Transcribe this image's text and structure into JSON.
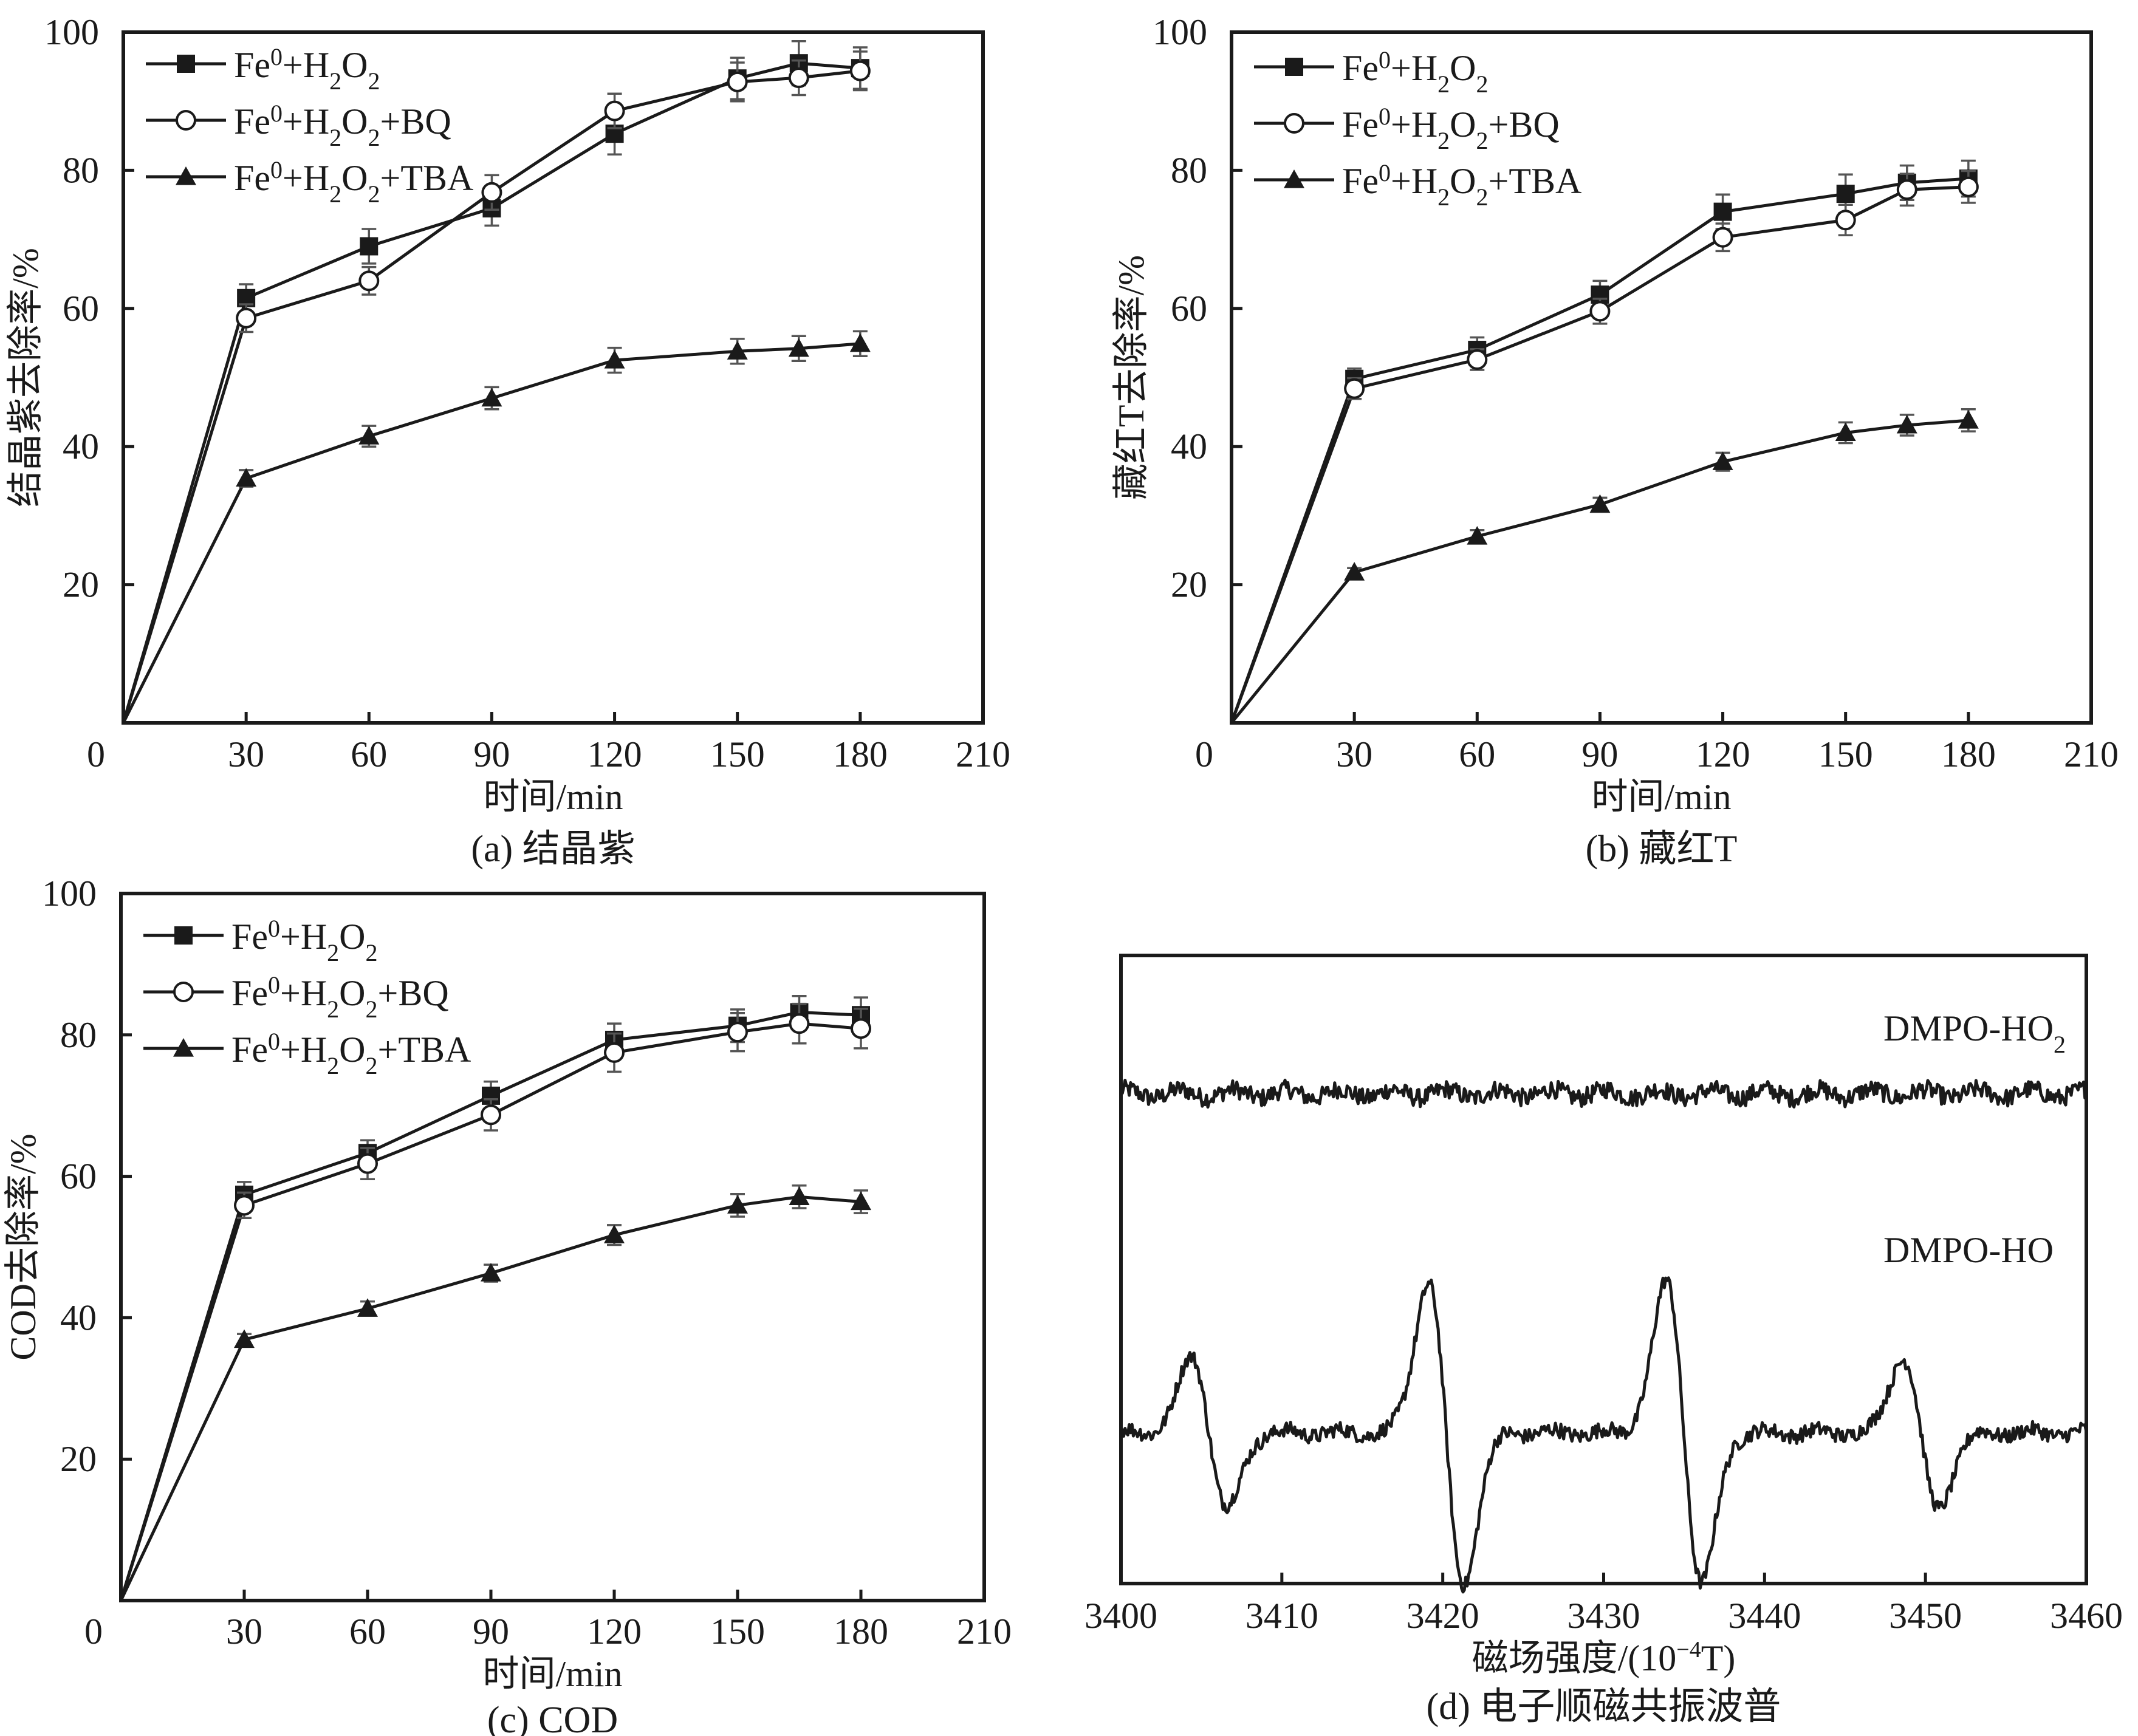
{
  "figure": {
    "panels": [
      "a",
      "b",
      "c",
      "d"
    ]
  },
  "chart_data": [
    {
      "id": "a",
      "type": "line",
      "caption": "(a) 结晶紫",
      "xlabel": "时间/min",
      "ylabel": "结晶紫去除率/%",
      "xlim": [
        0,
        210
      ],
      "ylim": [
        0,
        100
      ],
      "xticks": [
        0,
        30,
        60,
        90,
        120,
        150,
        180,
        210
      ],
      "yticks": [
        20,
        40,
        60,
        80,
        100
      ],
      "ytick_labels_extra": [
        "0"
      ],
      "grid": false,
      "legend_position": "top-left",
      "x": [
        0,
        30,
        60,
        90,
        120,
        150,
        165,
        180
      ],
      "series": [
        {
          "name": "Fe0+H2O2",
          "label_parts": [
            "Fe",
            "0",
            "+H",
            "2",
            "O",
            "2",
            ""
          ],
          "marker": "square-filled",
          "values": [
            0,
            61.5,
            69.0,
            74.5,
            85.3,
            93.3,
            95.5,
            94.8
          ],
          "errors": [
            0,
            2.0,
            2.5,
            2.5,
            3.0,
            3.0,
            3.2,
            3.0
          ]
        },
        {
          "name": "Fe0+H2O2+BQ",
          "label_parts": [
            "Fe",
            "0",
            "+H",
            "2",
            "O",
            "2",
            "+BQ"
          ],
          "marker": "circle-open",
          "values": [
            0,
            58.6,
            64.0,
            76.8,
            88.6,
            92.8,
            93.4,
            94.4
          ],
          "errors": [
            0,
            2.0,
            2.0,
            2.5,
            2.5,
            2.8,
            2.5,
            2.8
          ]
        },
        {
          "name": "Fe0+H2O2+TBA",
          "label_parts": [
            "Fe",
            "0",
            "+H",
            "2",
            "O",
            "2",
            "+TBA"
          ],
          "marker": "triangle-filled",
          "values": [
            0,
            35.4,
            41.5,
            47.0,
            52.5,
            53.8,
            54.2,
            54.9
          ],
          "errors": [
            0,
            1.2,
            1.5,
            1.6,
            1.8,
            1.8,
            1.8,
            1.8
          ]
        }
      ]
    },
    {
      "id": "b",
      "type": "line",
      "caption": "(b) 藏红T",
      "xlabel": "时间/min",
      "ylabel": "藏红T去除率/%",
      "xlim": [
        0,
        210
      ],
      "ylim": [
        0,
        100
      ],
      "xticks": [
        0,
        30,
        60,
        90,
        120,
        150,
        180,
        210
      ],
      "yticks": [
        20,
        40,
        60,
        80,
        100
      ],
      "grid": false,
      "legend_position": "top-left",
      "x": [
        0,
        30,
        60,
        90,
        120,
        150,
        165,
        180
      ],
      "series": [
        {
          "name": "Fe0+H2O2",
          "label_parts": [
            "Fe",
            "0",
            "+H",
            "2",
            "O",
            "2",
            ""
          ],
          "marker": "square-filled",
          "values": [
            0,
            49.8,
            54.0,
            62.0,
            74.0,
            76.6,
            78.2,
            78.8
          ],
          "errors": [
            0,
            1.5,
            1.8,
            2.0,
            2.5,
            2.8,
            2.5,
            2.6
          ]
        },
        {
          "name": "Fe0+H2O2+BQ",
          "label_parts": [
            "Fe",
            "0",
            "+H",
            "2",
            "O",
            "2",
            "+BQ"
          ],
          "marker": "circle-open",
          "values": [
            0,
            48.4,
            52.6,
            59.6,
            70.3,
            72.8,
            77.2,
            77.6
          ],
          "errors": [
            0,
            1.5,
            1.5,
            1.8,
            2.0,
            2.2,
            2.3,
            2.3
          ]
        },
        {
          "name": "Fe0+H2O2+TBA",
          "label_parts": [
            "Fe",
            "0",
            "+H",
            "2",
            "O",
            "2",
            "+TBA"
          ],
          "marker": "triangle-filled",
          "values": [
            0,
            21.8,
            27.0,
            31.6,
            37.8,
            42.0,
            43.1,
            43.8
          ],
          "errors": [
            0,
            0.6,
            0.9,
            1.0,
            1.3,
            1.5,
            1.5,
            1.6
          ]
        }
      ]
    },
    {
      "id": "c",
      "type": "line",
      "caption": "(c) COD",
      "xlabel": "时间/min",
      "ylabel": "COD去除率/%",
      "xlim": [
        0,
        210
      ],
      "ylim": [
        0,
        100
      ],
      "xticks": [
        0,
        30,
        60,
        90,
        120,
        150,
        180,
        210
      ],
      "yticks": [
        20,
        40,
        60,
        80,
        100
      ],
      "grid": false,
      "legend_position": "top-left",
      "x": [
        0,
        30,
        60,
        90,
        120,
        150,
        165,
        180
      ],
      "series": [
        {
          "name": "Fe0+H2O2",
          "label_parts": [
            "Fe",
            "0",
            "+H",
            "2",
            "O",
            "2",
            ""
          ],
          "marker": "square-filled",
          "values": [
            0,
            57.4,
            63.3,
            71.4,
            79.3,
            81.3,
            83.2,
            82.8
          ],
          "errors": [
            0,
            1.8,
            1.8,
            2.0,
            2.3,
            2.3,
            2.3,
            2.5
          ]
        },
        {
          "name": "Fe0+H2O2+BQ",
          "label_parts": [
            "Fe",
            "0",
            "+H",
            "2",
            "O",
            "2",
            "+BQ"
          ],
          "marker": "circle-open",
          "values": [
            0,
            55.9,
            61.8,
            68.7,
            77.5,
            80.4,
            81.6,
            80.9
          ],
          "errors": [
            0,
            1.8,
            2.2,
            2.2,
            2.7,
            2.7,
            2.8,
            2.8
          ]
        },
        {
          "name": "Fe0+H2O2+TBA",
          "label_parts": [
            "Fe",
            "0",
            "+H",
            "2",
            "O",
            "2",
            "+TBA"
          ],
          "marker": "triangle-filled",
          "values": [
            0,
            36.9,
            41.3,
            46.3,
            51.7,
            55.9,
            57.1,
            56.4
          ],
          "errors": [
            0,
            0.8,
            1.0,
            1.2,
            1.4,
            1.6,
            1.6,
            1.6
          ]
        }
      ]
    },
    {
      "id": "d",
      "type": "line",
      "caption": "(d) 电子顺磁共振波普",
      "xlabel_parts": [
        "磁场强度/(10",
        "−4",
        "T)"
      ],
      "xlabel": "磁场强度/(10−4T)",
      "ylabel": "",
      "xlim": [
        3400,
        3460
      ],
      "xticks": [
        3400,
        3410,
        3420,
        3430,
        3440,
        3450,
        3460
      ],
      "yticks": [],
      "grid": false,
      "series": [
        {
          "name": "DMPO-HO2",
          "label_parts": [
            "DMPO-HO",
            "2"
          ],
          "kind": "noise-baseline",
          "offset": 0.78,
          "noise_amplitude": 0.03,
          "peaks": []
        },
        {
          "name": "DMPO-HO",
          "label_parts": [
            "DMPO-HO",
            ""
          ],
          "kind": "quartet",
          "offset": 0.24,
          "noise_amplitude": 0.025,
          "peaks": [
            {
              "center": 3405.5,
              "amplitude": 0.5
            },
            {
              "center": 3420.2,
              "amplitude": 1.0
            },
            {
              "center": 3435.0,
              "amplitude": 1.0
            },
            {
              "center": 3449.7,
              "amplitude": 0.5
            }
          ],
          "linewidth": 1.1,
          "intensity_ratio": "1:2:2:1"
        }
      ]
    }
  ]
}
